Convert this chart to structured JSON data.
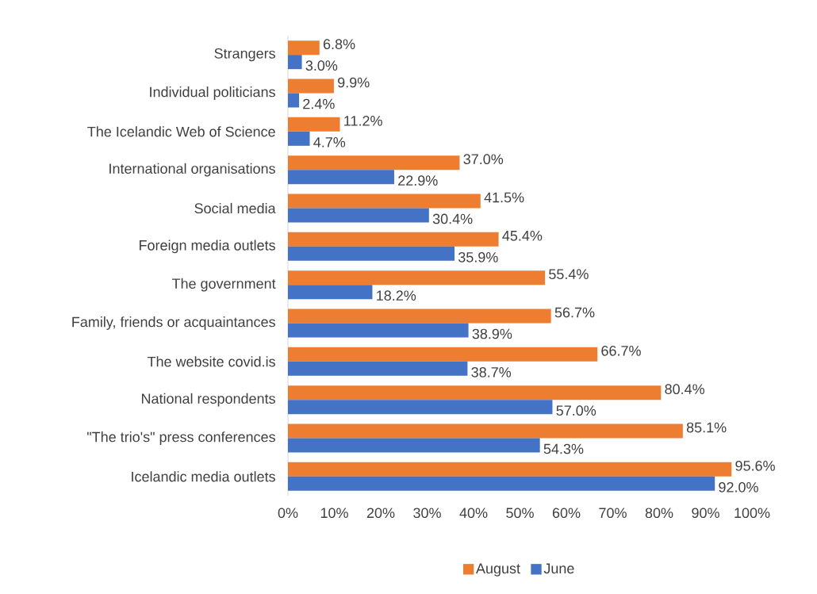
{
  "chart_data": {
    "type": "bar",
    "orientation": "horizontal",
    "categories": [
      "Strangers",
      "Individual politicians",
      "The Icelandic Web of Science",
      "International organisations",
      "Social media",
      "Foreign media outlets",
      "The government",
      "Family, friends or acquaintances",
      "The website covid.is",
      "National respondents",
      "\"The trio's\" press conferences",
      "Icelandic media outlets"
    ],
    "series": [
      {
        "name": "August",
        "color": "#ed7d31",
        "values": [
          6.8,
          9.9,
          11.2,
          37.0,
          41.5,
          45.4,
          55.4,
          56.7,
          66.7,
          80.4,
          85.1,
          95.6
        ],
        "value_labels": [
          "6.8%",
          "9.9%",
          "11.2%",
          "37.0%",
          "41.5%",
          "45.4%",
          "55.4%",
          "56.7%",
          "66.7%",
          "80.4%",
          "85.1%",
          "95.6%"
        ]
      },
      {
        "name": "June",
        "color": "#4472c4",
        "values": [
          3.0,
          2.4,
          4.7,
          22.9,
          30.4,
          35.9,
          18.2,
          38.9,
          38.7,
          57.0,
          54.3,
          92.0
        ],
        "value_labels": [
          "3.0%",
          "2.4%",
          "4.7%",
          "22.9%",
          "30.4%",
          "35.9%",
          "18.2%",
          "38.9%",
          "38.7%",
          "57.0%",
          "54.3%",
          "92.0%"
        ]
      }
    ],
    "xlim": [
      0,
      100
    ],
    "xticks": [
      {
        "value": 0,
        "label": "0%"
      },
      {
        "value": 10,
        "label": "10%"
      },
      {
        "value": 20,
        "label": "20%"
      },
      {
        "value": 30,
        "label": "30%"
      },
      {
        "value": 40,
        "label": "40%"
      },
      {
        "value": 50,
        "label": "50%"
      },
      {
        "value": 60,
        "label": "60%"
      },
      {
        "value": 70,
        "label": "70%"
      },
      {
        "value": 80,
        "label": "80%"
      },
      {
        "value": 90,
        "label": "90%"
      },
      {
        "value": 100,
        "label": "100%"
      }
    ],
    "grid": false,
    "legend": "bottom"
  }
}
